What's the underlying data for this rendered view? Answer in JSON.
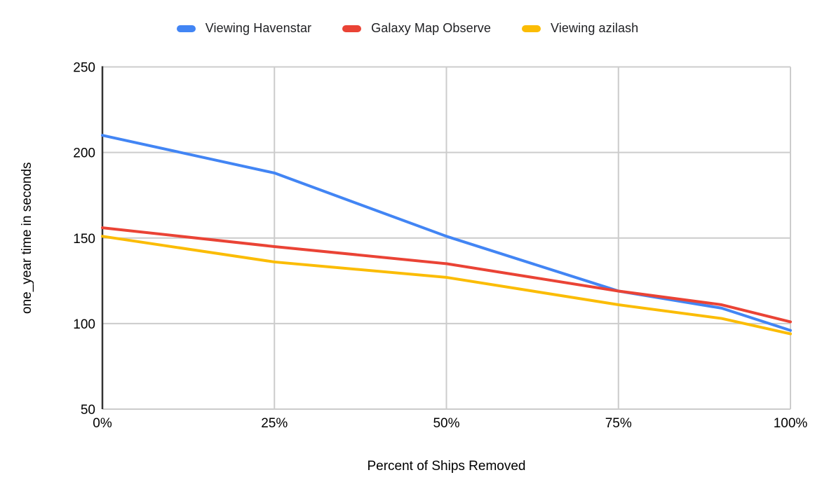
{
  "chart_data": {
    "type": "line",
    "x": [
      0,
      25,
      50,
      75,
      90,
      100
    ],
    "xlim": [
      0,
      100
    ],
    "ylim": [
      50,
      250
    ],
    "x_tick_values": [
      0,
      25,
      50,
      75,
      100
    ],
    "x_tick_labels": [
      "0%",
      "25%",
      "50%",
      "75%",
      "100%"
    ],
    "y_ticks": [
      50,
      100,
      150,
      200,
      250
    ],
    "y_tick_labels": [
      "50",
      "100",
      "150",
      "200",
      "250"
    ],
    "xlabel": "Percent of Ships Removed",
    "ylabel": "one_year time in seconds",
    "grid": true,
    "legend_position": "top",
    "series": [
      {
        "name": "Viewing Havenstar",
        "color": "#4285F4",
        "values": [
          210,
          188,
          151,
          119,
          109,
          96
        ]
      },
      {
        "name": "Galaxy Map Observe",
        "color": "#EA4335",
        "values": [
          156,
          145,
          135,
          119,
          111,
          101
        ]
      },
      {
        "name": "Viewing azilash",
        "color": "#FBBC04",
        "values": [
          151,
          136,
          127,
          111,
          103,
          94
        ]
      }
    ],
    "colors": {
      "gridline": "#cccccc",
      "axis_line": "#333333",
      "tick_text": "#000000",
      "title_text": "#000000",
      "background": "#ffffff"
    }
  }
}
